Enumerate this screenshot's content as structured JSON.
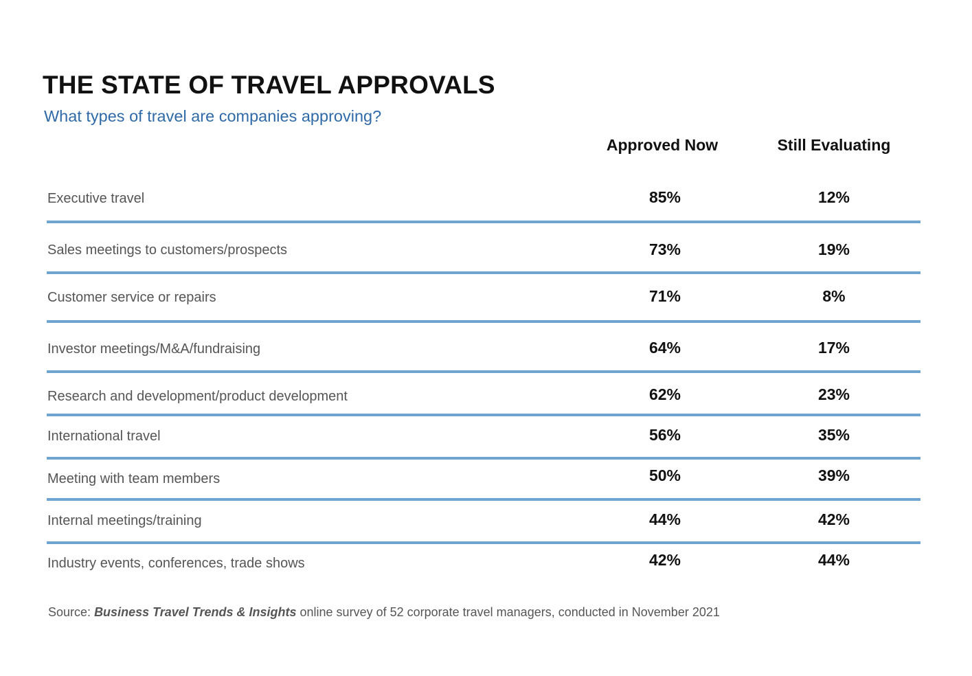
{
  "chart_data": {
    "type": "table",
    "title": "THE STATE OF TRAVEL APPROVALS",
    "subtitle": "What types of travel are companies approving?",
    "columns": [
      "Approved Now",
      "Still Evaluating"
    ],
    "rows": [
      {
        "label": "Executive travel",
        "approved_now": "85%",
        "still_evaluating": "12%"
      },
      {
        "label": "Sales meetings to customers/prospects",
        "approved_now": "73%",
        "still_evaluating": "19%"
      },
      {
        "label": "Customer service or repairs",
        "approved_now": "71%",
        "still_evaluating": "8%"
      },
      {
        "label": "Investor meetings/M&A/fundraising",
        "approved_now": "64%",
        "still_evaluating": "17%"
      },
      {
        "label": "Research and development/product development",
        "approved_now": "62%",
        "still_evaluating": "23%"
      },
      {
        "label": "International travel",
        "approved_now": "56%",
        "still_evaluating": "35%"
      },
      {
        "label": "Meeting with team members",
        "approved_now": "50%",
        "still_evaluating": "39%"
      },
      {
        "label": "Internal meetings/training",
        "approved_now": "44%",
        "still_evaluating": "42%"
      },
      {
        "label": "Industry events, conferences, trade shows",
        "approved_now": "42%",
        "still_evaluating": "44%"
      }
    ],
    "source": {
      "prefix": "Source:",
      "publication": "Business Travel Trends & Insights",
      "suffix": "online survey of 52 corporate travel managers, conducted in  November 2021"
    },
    "colors": {
      "title": "#111111",
      "subtitle": "#2f6aa8",
      "divider": "#6fa3d0",
      "label": "#555555"
    }
  }
}
